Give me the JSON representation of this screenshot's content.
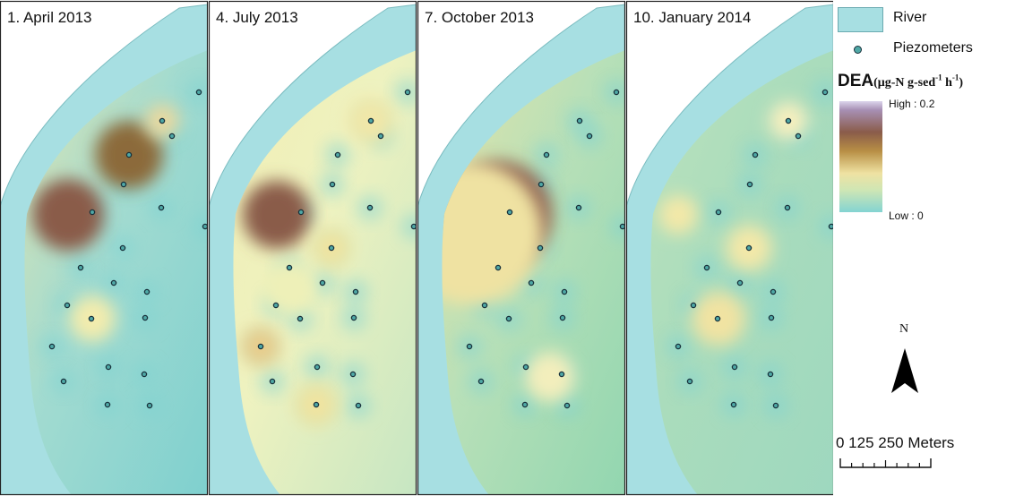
{
  "panels": [
    {
      "title": "1. April 2013",
      "variant": "april"
    },
    {
      "title": "4. July 2013",
      "variant": "july"
    },
    {
      "title": "7. October 2013",
      "variant": "october"
    },
    {
      "title": "10. January 2014",
      "variant": "january"
    }
  ],
  "legend": {
    "river_label": "River",
    "piezometer_label": "Piezometers",
    "dea_label": "DEA",
    "dea_unit_prefix": "(μg-N g-sed",
    "dea_unit_exp1": "-1",
    "dea_unit_mid": " h",
    "dea_unit_exp2": "-1",
    "dea_unit_suffix": ")",
    "high_label": "High : 0.2",
    "low_label": "Low : 0",
    "north_label": "N",
    "scale_label": "0    125   250 Meters"
  },
  "colors": {
    "river": "#a7dfe2",
    "background_low": "#7fd0cf",
    "mid_yellow": "#f1e7a8",
    "high_brown": "#8a5c4a",
    "max_purple": "#c9bbe0"
  },
  "icons": {
    "north_arrow": "north-arrow-icon",
    "piezometer": "piezometer-dot-icon"
  }
}
